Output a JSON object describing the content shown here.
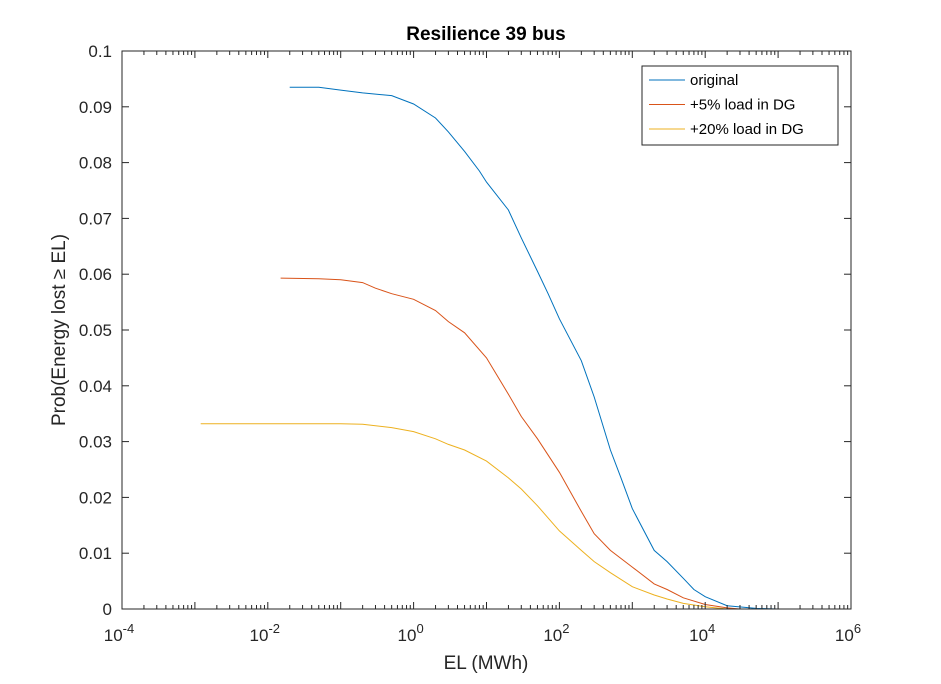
{
  "chart_data": {
    "type": "line",
    "title": "Resilience 39 bus",
    "xlabel": "EL (MWh)",
    "ylabel": "Prob(Energy lost ≥ EL)",
    "xscale": "log",
    "xlim": [
      0.0001,
      1000000
    ],
    "ylim": [
      0,
      0.1
    ],
    "grid": false,
    "legend_position": "top-right",
    "x_tick_labels": [
      {
        "base": "10",
        "exp": "-4"
      },
      {
        "base": "10",
        "exp": "-2"
      },
      {
        "base": "10",
        "exp": "0"
      },
      {
        "base": "10",
        "exp": "2"
      },
      {
        "base": "10",
        "exp": "4"
      },
      {
        "base": "10",
        "exp": "6"
      }
    ],
    "y_tick_labels": [
      "0",
      "0.01",
      "0.02",
      "0.03",
      "0.04",
      "0.05",
      "0.06",
      "0.07",
      "0.08",
      "0.09",
      "0.1"
    ],
    "series": [
      {
        "name": "original",
        "color": "#0072BD",
        "x": [
          0.02,
          0.05,
          0.1,
          0.2,
          0.5,
          1,
          2,
          3,
          5,
          8,
          10,
          20,
          30,
          50,
          70,
          100,
          200,
          300,
          500,
          700,
          1000,
          2000,
          3000,
          5000,
          7000,
          10000,
          20000,
          50000,
          100000
        ],
        "y": [
          0.0935,
          0.0935,
          0.093,
          0.0925,
          0.092,
          0.0905,
          0.088,
          0.0855,
          0.082,
          0.0785,
          0.0765,
          0.0715,
          0.0665,
          0.0605,
          0.0565,
          0.052,
          0.0445,
          0.038,
          0.0285,
          0.0235,
          0.018,
          0.0105,
          0.0085,
          0.0055,
          0.0035,
          0.0022,
          0.0006,
          0.0001,
          0.0
        ]
      },
      {
        "name": "+5% load in DG",
        "color": "#D95319",
        "x": [
          0.015,
          0.05,
          0.1,
          0.2,
          0.3,
          0.5,
          1,
          2,
          3,
          5,
          10,
          20,
          30,
          50,
          100,
          200,
          300,
          500,
          1000,
          2000,
          3000,
          5000,
          10000,
          20000,
          30000
        ],
        "y": [
          0.0593,
          0.0592,
          0.059,
          0.0585,
          0.0575,
          0.0565,
          0.0555,
          0.0535,
          0.0515,
          0.0495,
          0.045,
          0.0385,
          0.0345,
          0.0305,
          0.0245,
          0.0175,
          0.0135,
          0.0105,
          0.0075,
          0.0045,
          0.0035,
          0.002,
          0.0008,
          0.0002,
          0.0
        ]
      },
      {
        "name": "+20% load in DG",
        "color": "#EDB120",
        "x": [
          0.0012,
          0.01,
          0.05,
          0.1,
          0.2,
          0.5,
          1,
          2,
          3,
          5,
          10,
          20,
          30,
          50,
          100,
          200,
          300,
          500,
          1000,
          2000,
          3000,
          5000,
          10000,
          20000
        ],
        "y": [
          0.0332,
          0.0332,
          0.0332,
          0.0332,
          0.0331,
          0.0325,
          0.0318,
          0.0305,
          0.0295,
          0.0285,
          0.0265,
          0.0235,
          0.0215,
          0.0185,
          0.014,
          0.0105,
          0.0085,
          0.0065,
          0.004,
          0.0025,
          0.0018,
          0.001,
          0.0004,
          0.0
        ]
      }
    ]
  }
}
